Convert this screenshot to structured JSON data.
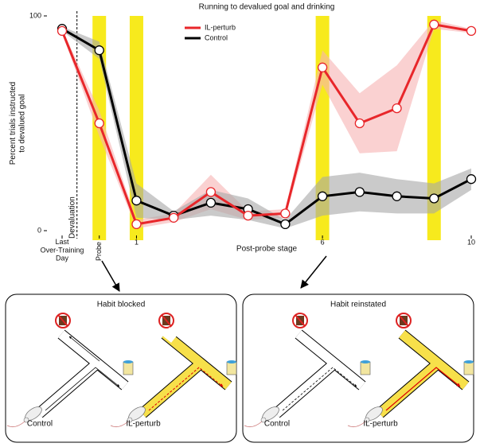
{
  "chart_data": {
    "type": "line",
    "title": "Running to devalued goal and drinking",
    "xlabel": "Post-probe stage",
    "ylabel": "Percent trials instructed\nto devalued goal",
    "x": [
      -1,
      0,
      1,
      2,
      3,
      4,
      5,
      6,
      7,
      8,
      9,
      10
    ],
    "series": [
      {
        "name": "IL-perturb",
        "color": "#e8262a",
        "band_color": "#f6b3b3",
        "values": [
          93,
          50,
          3,
          6,
          18,
          7,
          8,
          76,
          50,
          57,
          96,
          93
        ],
        "errors": [
          1,
          6,
          2,
          2,
          8,
          2,
          2,
          8,
          14,
          20,
          2,
          1
        ]
      },
      {
        "name": "Control",
        "color": "#000000",
        "band_color": "#a6a6a6",
        "values": [
          94,
          84,
          14,
          7,
          13,
          10,
          3,
          16,
          18,
          16,
          15,
          24
        ],
        "errors": [
          1,
          4,
          8,
          2,
          6,
          5,
          2,
          9,
          9,
          8,
          7,
          5
        ]
      }
    ],
    "xlim": [
      -1,
      10
    ],
    "ylim": [
      0,
      100
    ],
    "yticks": [
      0,
      100
    ],
    "xticks": [
      {
        "value": -1,
        "label": "Last\nOver-Training\nDay"
      },
      {
        "value": 0,
        "label": "Probe"
      },
      1,
      6,
      10
    ],
    "highlight_x": [
      0,
      1,
      6,
      9
    ],
    "highlight_color": "#f7ea1d",
    "annotation": {
      "text": "Devaluation",
      "x": -0.6
    }
  },
  "panels": [
    {
      "title": "Habit blocked",
      "labels": [
        "Control",
        "IL-perturb"
      ]
    },
    {
      "title": "Habit reinstated",
      "labels": [
        "Control",
        "IL-perturb"
      ]
    }
  ]
}
